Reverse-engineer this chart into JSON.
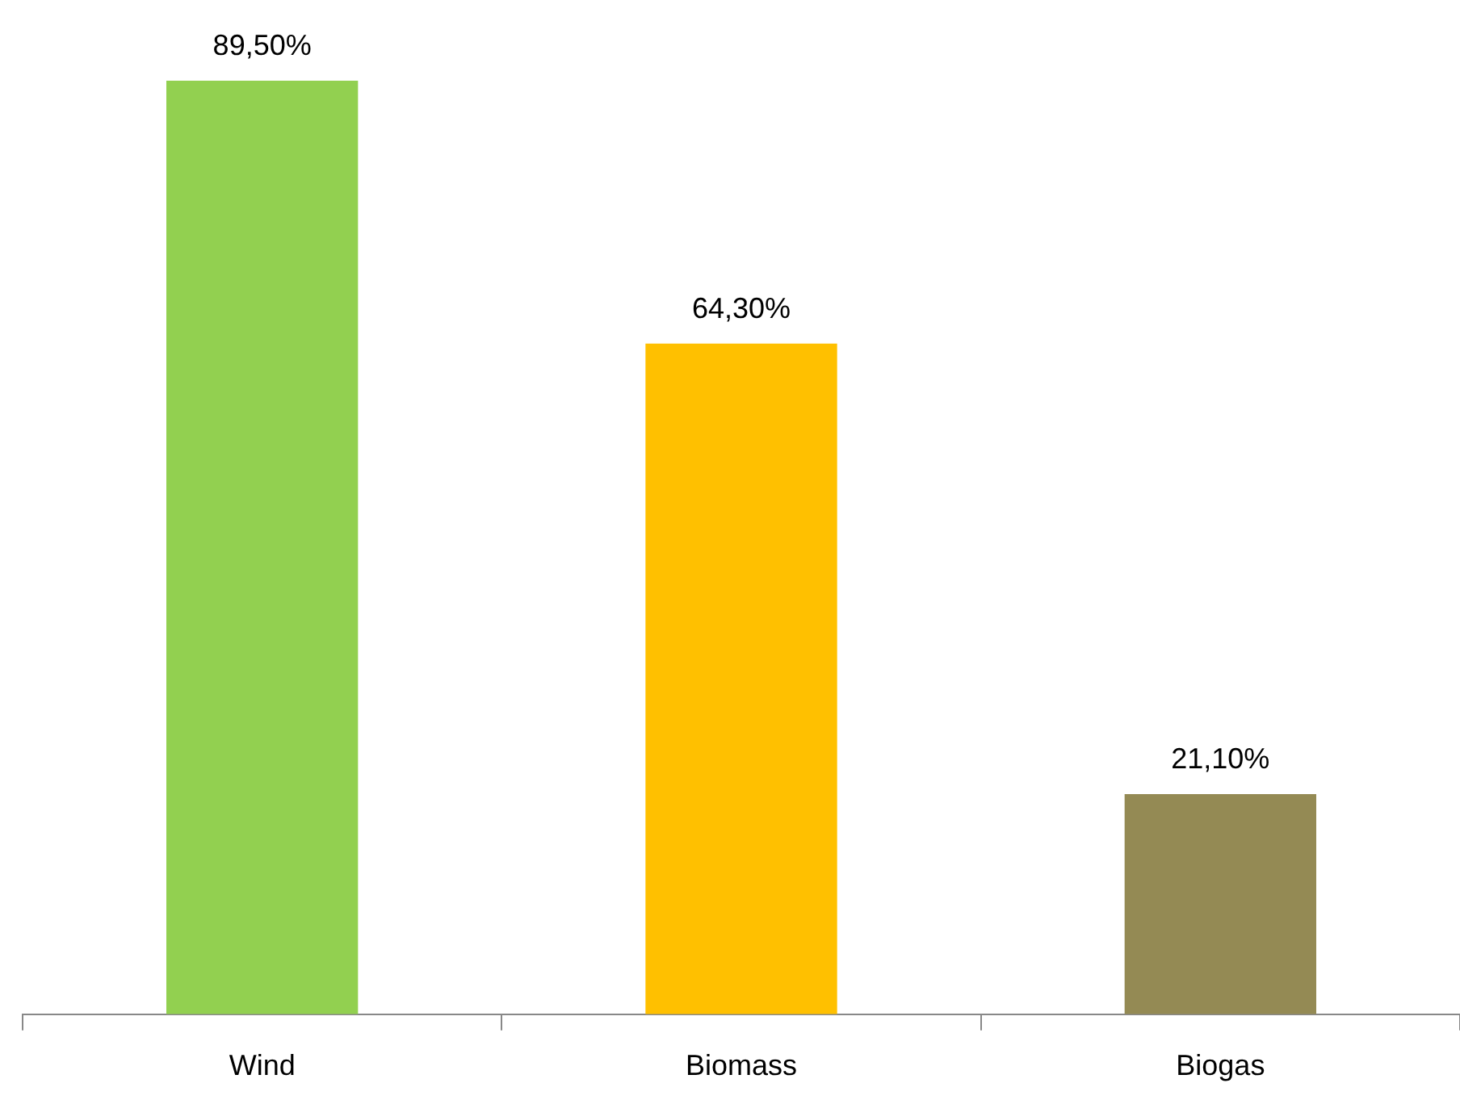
{
  "chart_data": {
    "type": "bar",
    "categories": [
      "Wind",
      "Biomass",
      "Biogas"
    ],
    "values": [
      89.5,
      64.3,
      21.1
    ],
    "colors": [
      "#92d050",
      "#ffc000",
      "#948a54"
    ],
    "value_labels": [
      "89,50%",
      "64,30%",
      "21,10%"
    ],
    "grid": false,
    "legend": false
  }
}
